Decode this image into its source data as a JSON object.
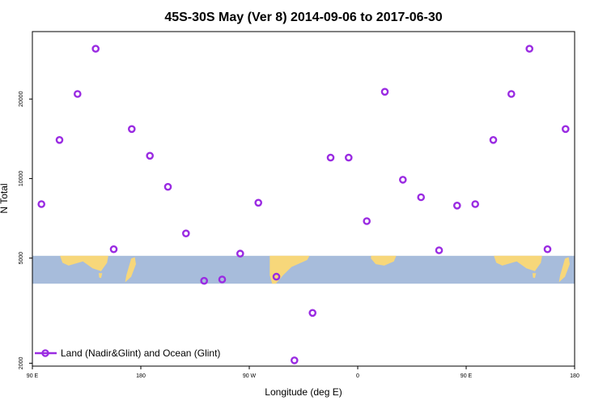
{
  "chart_data": {
    "type": "scatter",
    "title": "45S-30S May (Ver 8)   2014-09-06 to 2017-06-30",
    "xlabel": "Longitude (deg E)",
    "ylabel": "N Total",
    "x_axis": {
      "range_deg_east": [
        90,
        450
      ],
      "ticks": [
        {
          "value": 90,
          "label": "90 E"
        },
        {
          "value": 180,
          "label": "180"
        },
        {
          "value": 270,
          "label": "90 W"
        },
        {
          "value": 360,
          "label": "0"
        },
        {
          "value": 450,
          "label": "90 E"
        },
        {
          "value": 540,
          "label": "180"
        }
      ],
      "range": [
        90,
        540
      ]
    },
    "y_axis": {
      "scale": "log",
      "range": [
        1950,
        36000
      ],
      "ticks": [
        {
          "value": 2000,
          "label": "2000"
        },
        {
          "value": 5000,
          "label": "5000"
        },
        {
          "value": 10000,
          "label": "10000"
        },
        {
          "value": 20000,
          "label": "20000"
        }
      ]
    },
    "map_band": {
      "latitude_range": "45S-30S",
      "y_range": [
        4000,
        5100
      ],
      "ocean_color": "#a7bcdb",
      "land_color": "#f7d77a"
    },
    "series": [
      {
        "name": "Land (Nadir&Glint) and Ocean (Glint)",
        "color": "#9a2be2",
        "marker": "open-circle",
        "points": [
          {
            "x": 97.5,
            "y": 8000
          },
          {
            "x": 112.5,
            "y": 14000
          },
          {
            "x": 127.5,
            "y": 20900
          },
          {
            "x": 142.5,
            "y": 31000
          },
          {
            "x": 157.5,
            "y": 5400
          },
          {
            "x": 172.5,
            "y": 15400
          },
          {
            "x": 187.5,
            "y": 12200
          },
          {
            "x": 202.5,
            "y": 9300
          },
          {
            "x": 217.5,
            "y": 6200
          },
          {
            "x": 232.5,
            "y": 4100
          },
          {
            "x": 247.5,
            "y": 4150
          },
          {
            "x": 262.5,
            "y": 5200
          },
          {
            "x": 277.5,
            "y": 8100
          },
          {
            "x": 292.5,
            "y": 4250
          },
          {
            "x": 307.5,
            "y": 2050
          },
          {
            "x": 322.5,
            "y": 3100
          },
          {
            "x": 337.5,
            "y": 12000
          },
          {
            "x": 352.5,
            "y": 12000
          },
          {
            "x": 367.5,
            "y": 6900
          },
          {
            "x": 382.5,
            "y": 21300
          },
          {
            "x": 397.5,
            "y": 9900
          },
          {
            "x": 412.5,
            "y": 8500
          },
          {
            "x": 427.5,
            "y": 5350
          },
          {
            "x": 442.5,
            "y": 7900
          },
          {
            "x": 457.5,
            "y": 8000
          },
          {
            "x": 472.5,
            "y": 14000
          },
          {
            "x": 487.5,
            "y": 20900
          },
          {
            "x": 502.5,
            "y": 31000
          },
          {
            "x": 517.5,
            "y": 5400
          },
          {
            "x": 532.5,
            "y": 15400
          }
        ]
      }
    ],
    "legend": {
      "placement": "bottom-left"
    }
  }
}
